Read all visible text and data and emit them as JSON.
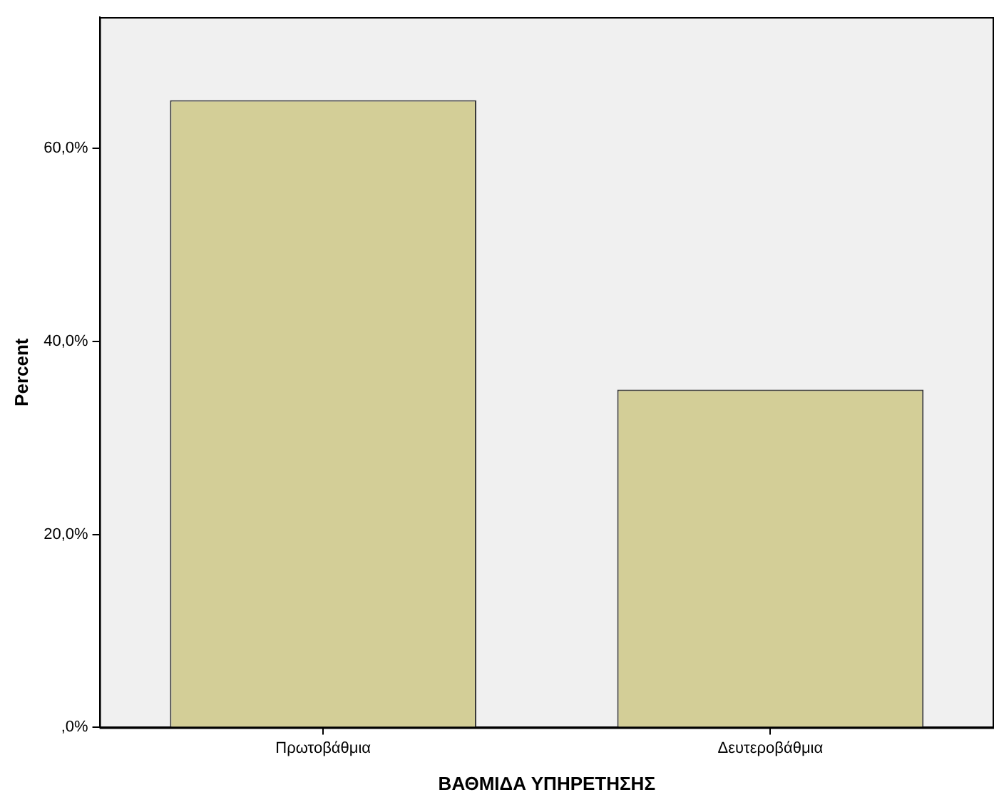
{
  "chart_data": {
    "type": "bar",
    "xlabel": "ΒΑΘΜΙΔΑ ΥΠΗΡΕΤΗΣΗΣ",
    "ylabel": "Percent",
    "categories": [
      "Πρωτοβάθμια",
      "Δευτεροβάθμια"
    ],
    "values": [
      65,
      35
    ],
    "color": "#d3ce97",
    "ylim": [
      0,
      73.6
    ],
    "yticks": [
      {
        "value": 0,
        "label": ",0%"
      },
      {
        "value": 20,
        "label": "20,0%"
      },
      {
        "value": 40,
        "label": "40,0%"
      },
      {
        "value": 60,
        "label": "60,0%"
      }
    ],
    "grid": false
  }
}
